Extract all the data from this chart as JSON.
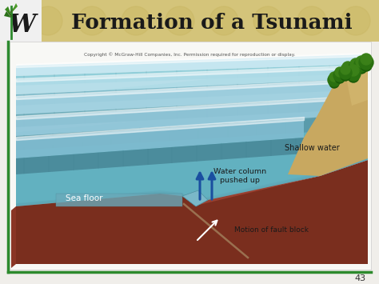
{
  "title": "Formation of a Tsunami",
  "copyright_text": "Copyright © McGraw-Hill Companies, Inc. Permission required for reproduction or display.",
  "page_number": "43",
  "labels": {
    "sea_floor": "Sea floor",
    "shallow_water": "Shallow water",
    "water_column": "Water column\npushed up",
    "motion_fault": "Motion of fault block"
  },
  "bg_color": "#f0eeea",
  "header_bg": "#d4c47a",
  "header_text_color": "#1a1a1a",
  "slide_border_color": "#2d8a2d",
  "water_color_deep": "#5aadbe",
  "water_color_mid": "#7fc5d0",
  "water_color_light": "#a8dce8",
  "seafloor_color_dark": "#7a2e1e",
  "seafloor_color_mid": "#9a4030",
  "seafloor_color_light": "#b05040",
  "wave_front_color": "#4a9db0",
  "wave_highlight": "#c8eaf0",
  "arrow_color": "#1a4fa0",
  "label_color": "#1a1a1a",
  "fault_line_color": "#b07050",
  "beach_color": "#c8a860",
  "tree_color": "#2a6a10"
}
